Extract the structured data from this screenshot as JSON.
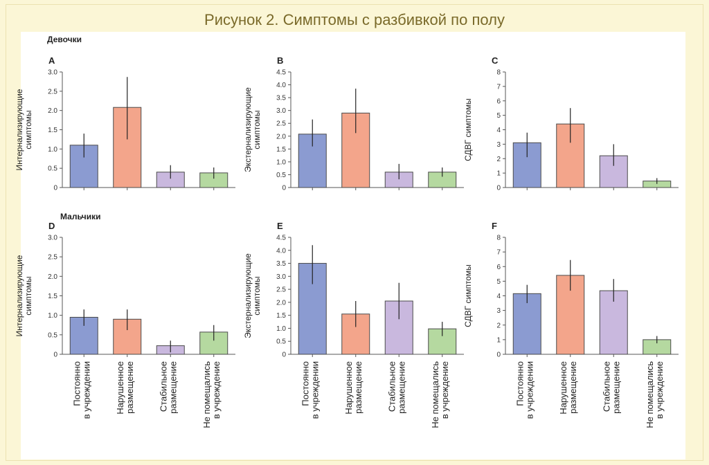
{
  "title": "Рисунок 2. Симптомы с разбивкой по полу",
  "groups": {
    "girls": "Девочки",
    "boys": "Мальчики"
  },
  "category_labels": [
    [
      "Постоянно",
      "в учреждении"
    ],
    [
      "Нарушенное",
      "размещение"
    ],
    [
      "Стабильное",
      "размещение"
    ],
    [
      "Не помещались",
      "в учреждение"
    ]
  ],
  "colors": {
    "bar_fills": [
      "#8b9bd1",
      "#f3a58b",
      "#c9b8de",
      "#b5d9a0"
    ],
    "bar_stroke": "#4a4a4a",
    "error_bar": "#222222"
  },
  "chart_data": [
    {
      "type": "bar",
      "panel": "A",
      "ylabel": [
        "Интернализирующие",
        "симптомы"
      ],
      "ylim": [
        0,
        3.0
      ],
      "yticks": [
        "0",
        "0.5",
        "1.0",
        "1.5",
        "2.0",
        "2.5",
        "3.0"
      ],
      "ytick_values": [
        0,
        0.5,
        1.0,
        1.5,
        2.0,
        2.5,
        3.0
      ],
      "values": [
        1.1,
        2.08,
        0.4,
        0.38
      ],
      "err_low": [
        0.78,
        1.25,
        0.23,
        0.23
      ],
      "err_high": [
        1.4,
        2.87,
        0.58,
        0.52
      ]
    },
    {
      "type": "bar",
      "panel": "B",
      "ylabel": [
        "Экстернализирующие",
        "симптомы"
      ],
      "ylim": [
        0,
        4.5
      ],
      "yticks": [
        "0",
        "0.5",
        "1.0",
        "1.5",
        "2.0",
        "2.5",
        "3.0",
        "3.5",
        "4.0",
        "4.5"
      ],
      "ytick_values": [
        0,
        0.5,
        1.0,
        1.5,
        2.0,
        2.5,
        3.0,
        3.5,
        4.0,
        4.5
      ],
      "values": [
        2.08,
        2.9,
        0.6,
        0.6
      ],
      "err_low": [
        1.6,
        2.12,
        0.32,
        0.42
      ],
      "err_high": [
        2.65,
        3.85,
        0.92,
        0.78
      ]
    },
    {
      "type": "bar",
      "panel": "C",
      "ylabel": [
        "СДВГ симптомы"
      ],
      "ylim": [
        0,
        8
      ],
      "yticks": [
        "0",
        "1",
        "2",
        "3",
        "4",
        "5",
        "6",
        "7",
        "8"
      ],
      "ytick_values": [
        0,
        1,
        2,
        3,
        4,
        5,
        6,
        7,
        8
      ],
      "values": [
        3.1,
        4.4,
        2.2,
        0.45
      ],
      "err_low": [
        2.1,
        3.1,
        1.5,
        0.25
      ],
      "err_high": [
        3.8,
        5.5,
        3.0,
        0.65
      ]
    },
    {
      "type": "bar",
      "panel": "D",
      "ylabel": [
        "Интернализирующие",
        "симптомы"
      ],
      "ylim": [
        0,
        3.0
      ],
      "yticks": [
        "0",
        "0.5",
        "1.0",
        "1.5",
        "2.0",
        "2.5",
        "3.0"
      ],
      "ytick_values": [
        0,
        0.5,
        1.0,
        1.5,
        2.0,
        2.5,
        3.0
      ],
      "values": [
        0.95,
        0.9,
        0.22,
        0.57
      ],
      "err_low": [
        0.73,
        0.62,
        0.05,
        0.35
      ],
      "err_high": [
        1.15,
        1.15,
        0.35,
        0.75
      ]
    },
    {
      "type": "bar",
      "panel": "E",
      "ylabel": [
        "Экстернализирующие",
        "симптомы"
      ],
      "ylim": [
        0,
        4.5
      ],
      "yticks": [
        "0",
        "0.5",
        "1.0",
        "1.5",
        "2.0",
        "2.5",
        "3.0",
        "3.5",
        "4.0",
        "4.5"
      ],
      "ytick_values": [
        0,
        0.5,
        1.0,
        1.5,
        2.0,
        2.5,
        3.0,
        3.5,
        4.0,
        4.5
      ],
      "values": [
        3.5,
        1.55,
        2.05,
        0.98
      ],
      "err_low": [
        2.7,
        1.05,
        1.35,
        0.7
      ],
      "err_high": [
        4.2,
        2.05,
        2.75,
        1.25
      ]
    },
    {
      "type": "bar",
      "panel": "F",
      "ylabel": [
        "СДВГ симптомы"
      ],
      "ylim": [
        0,
        8
      ],
      "yticks": [
        "0",
        "1",
        "2",
        "3",
        "4",
        "5",
        "6",
        "7",
        "8"
      ],
      "ytick_values": [
        0,
        1,
        2,
        3,
        4,
        5,
        6,
        7,
        8
      ],
      "values": [
        4.15,
        5.4,
        4.35,
        1.0
      ],
      "err_low": [
        3.5,
        4.35,
        3.6,
        0.75
      ],
      "err_high": [
        4.75,
        6.45,
        5.15,
        1.25
      ]
    }
  ]
}
